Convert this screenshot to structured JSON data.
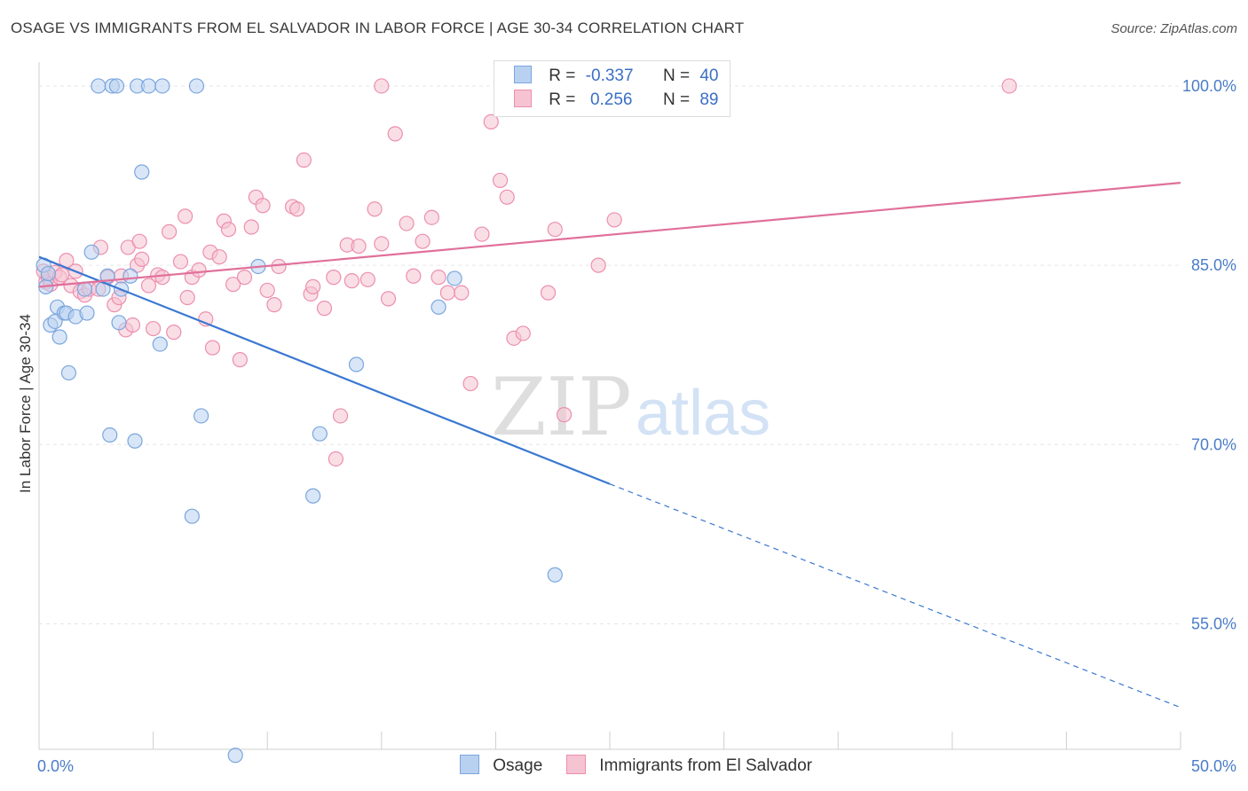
{
  "title": "OSAGE VS IMMIGRANTS FROM EL SALVADOR IN LABOR FORCE | AGE 30-34 CORRELATION CHART",
  "source": "Source: ZipAtlas.com",
  "watermark": {
    "zip": "ZIP",
    "atlas": "atlas"
  },
  "legend": {
    "rows": [
      {
        "r_label": "R =",
        "r_value": "-0.337",
        "n_label": "N =",
        "n_value": "40"
      },
      {
        "r_label": "R =",
        "r_value": " 0.256",
        "n_label": "N =",
        "n_value": "89"
      }
    ]
  },
  "colors": {
    "osage_fill": "#b9d1f1",
    "osage_stroke": "#7aa6de",
    "osage_line": "#3a78d0",
    "salvador_fill": "#f6c3d2",
    "salvador_stroke": "#ec8fae",
    "salvador_line": "#e0709a",
    "grid": "#e6e6e6",
    "tick_text": "#4a7cc8"
  },
  "chart_data": {
    "type": "scatter",
    "title": "OSAGE VS IMMIGRANTS FROM EL SALVADOR IN LABOR FORCE | AGE 30-34 CORRELATION CHART",
    "xlabel": "",
    "ylabel": "In Labor Force | Age 30-34",
    "xlim": [
      0,
      50
    ],
    "ylim": [
      44.5,
      102
    ],
    "x_ticks": [
      {
        "value": 0,
        "label": "0.0%"
      },
      {
        "value": 50,
        "label": "50.0%"
      }
    ],
    "y_ticks": [
      {
        "value": 100,
        "label": "100.0%"
      },
      {
        "value": 85,
        "label": "85.0%"
      },
      {
        "value": 70,
        "label": "70.0%"
      },
      {
        "value": 55,
        "label": "55.0%"
      }
    ],
    "grid": true,
    "legend_position": "top-center",
    "series": [
      {
        "name": "Osage",
        "r": -0.337,
        "n": 40,
        "trend": {
          "x0": 0,
          "y0": 85.7,
          "x1": 25,
          "y1": 66.7,
          "dash_to_x": 50,
          "dash_to_y": 48
        },
        "points": [
          [
            0.2,
            85.0
          ],
          [
            0.3,
            83.2
          ],
          [
            0.5,
            80.0
          ],
          [
            0.7,
            80.3
          ],
          [
            0.8,
            81.5
          ],
          [
            0.9,
            79.0
          ],
          [
            1.1,
            81.0
          ],
          [
            1.2,
            81.0
          ],
          [
            1.3,
            76.0
          ],
          [
            1.6,
            80.7
          ],
          [
            2.0,
            83.0
          ],
          [
            2.1,
            81.0
          ],
          [
            2.3,
            86.1
          ],
          [
            2.6,
            100.0
          ],
          [
            2.8,
            83.0
          ],
          [
            3.0,
            84.1
          ],
          [
            3.1,
            70.8
          ],
          [
            3.2,
            100.0
          ],
          [
            3.4,
            100.0
          ],
          [
            3.5,
            80.2
          ],
          [
            4.0,
            84.1
          ],
          [
            4.2,
            70.3
          ],
          [
            4.3,
            100.0
          ],
          [
            4.5,
            92.8
          ],
          [
            4.8,
            100.0
          ],
          [
            5.3,
            78.4
          ],
          [
            5.4,
            100.0
          ],
          [
            6.9,
            100.0
          ],
          [
            7.1,
            72.4
          ],
          [
            6.7,
            64.0
          ],
          [
            8.6,
            44.0
          ],
          [
            9.6,
            84.9
          ],
          [
            12.0,
            65.7
          ],
          [
            12.3,
            70.9
          ],
          [
            13.9,
            76.7
          ],
          [
            17.5,
            81.5
          ],
          [
            18.2,
            83.9
          ],
          [
            22.6,
            59.1
          ],
          [
            3.6,
            83.0
          ],
          [
            0.4,
            84.3
          ]
        ]
      },
      {
        "name": "Immigrants from El Salvador",
        "r": 0.256,
        "n": 89,
        "trend": {
          "x0": 0,
          "y0": 83.2,
          "x1": 50,
          "y1": 91.9
        },
        "points": [
          [
            0.2,
            84.5
          ],
          [
            0.3,
            83.6
          ],
          [
            0.4,
            84.0
          ],
          [
            0.5,
            83.4
          ],
          [
            0.7,
            84.4
          ],
          [
            0.9,
            84.0
          ],
          [
            1.0,
            84.2
          ],
          [
            1.2,
            85.4
          ],
          [
            1.4,
            83.3
          ],
          [
            1.6,
            84.5
          ],
          [
            1.8,
            82.8
          ],
          [
            2.0,
            82.5
          ],
          [
            2.2,
            83.0
          ],
          [
            2.6,
            83.0
          ],
          [
            2.7,
            86.5
          ],
          [
            3.0,
            84.0
          ],
          [
            3.3,
            81.7
          ],
          [
            3.5,
            82.3
          ],
          [
            3.6,
            84.1
          ],
          [
            3.8,
            79.6
          ],
          [
            3.9,
            86.5
          ],
          [
            4.1,
            80.0
          ],
          [
            4.3,
            85.0
          ],
          [
            4.4,
            87.0
          ],
          [
            4.5,
            85.5
          ],
          [
            4.8,
            83.3
          ],
          [
            5.0,
            79.7
          ],
          [
            5.2,
            84.2
          ],
          [
            5.4,
            84.0
          ],
          [
            5.7,
            87.8
          ],
          [
            5.9,
            79.4
          ],
          [
            6.2,
            85.3
          ],
          [
            6.4,
            89.1
          ],
          [
            6.5,
            82.3
          ],
          [
            6.7,
            84.0
          ],
          [
            7.0,
            84.6
          ],
          [
            7.3,
            80.5
          ],
          [
            7.5,
            86.1
          ],
          [
            7.6,
            78.1
          ],
          [
            7.9,
            85.7
          ],
          [
            8.1,
            88.7
          ],
          [
            8.3,
            88.0
          ],
          [
            8.5,
            83.4
          ],
          [
            8.8,
            77.1
          ],
          [
            9.0,
            84.0
          ],
          [
            9.3,
            88.2
          ],
          [
            9.5,
            90.7
          ],
          [
            9.8,
            90.0
          ],
          [
            10.0,
            82.9
          ],
          [
            10.3,
            81.7
          ],
          [
            10.5,
            84.9
          ],
          [
            11.1,
            89.9
          ],
          [
            11.3,
            89.7
          ],
          [
            11.6,
            93.8
          ],
          [
            11.9,
            82.6
          ],
          [
            12.0,
            83.2
          ],
          [
            12.5,
            81.4
          ],
          [
            12.9,
            84.0
          ],
          [
            13.2,
            72.4
          ],
          [
            13.5,
            86.7
          ],
          [
            13.7,
            83.7
          ],
          [
            14.0,
            86.6
          ],
          [
            14.4,
            83.8
          ],
          [
            14.7,
            89.7
          ],
          [
            15.0,
            86.8
          ],
          [
            15.3,
            82.2
          ],
          [
            15.6,
            96.0
          ],
          [
            16.1,
            88.5
          ],
          [
            16.4,
            84.1
          ],
          [
            16.8,
            87.0
          ],
          [
            17.2,
            89.0
          ],
          [
            17.5,
            84.0
          ],
          [
            17.9,
            82.7
          ],
          [
            18.5,
            82.7
          ],
          [
            18.9,
            75.1
          ],
          [
            19.4,
            87.6
          ],
          [
            19.8,
            97.0
          ],
          [
            20.2,
            92.1
          ],
          [
            20.5,
            90.7
          ],
          [
            20.8,
            78.9
          ],
          [
            21.2,
            79.3
          ],
          [
            22.3,
            82.7
          ],
          [
            22.6,
            88.0
          ],
          [
            23.0,
            72.5
          ],
          [
            24.5,
            85.0
          ],
          [
            25.2,
            88.8
          ],
          [
            15.0,
            100.0
          ],
          [
            42.5,
            100.0
          ],
          [
            13.0,
            68.8
          ]
        ]
      }
    ]
  },
  "bottom_legend": [
    {
      "label": "Osage"
    },
    {
      "label": "Immigrants from El Salvador"
    }
  ]
}
